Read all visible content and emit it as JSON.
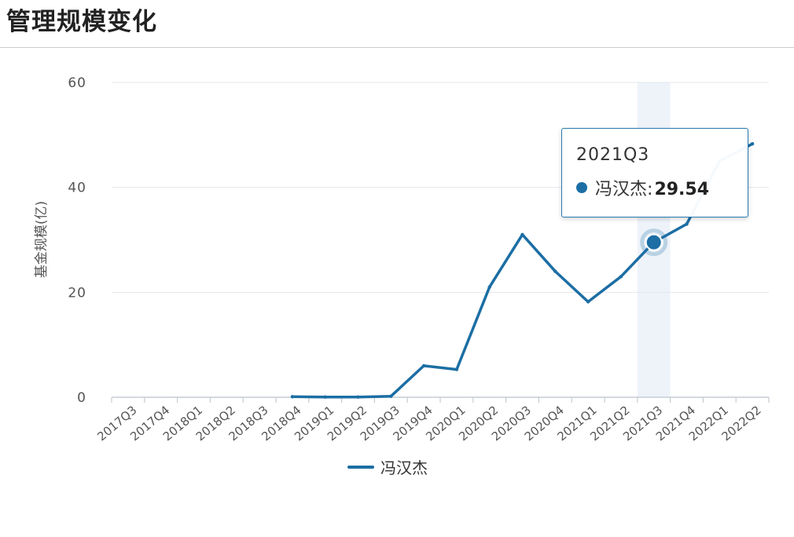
{
  "header": {
    "title": "管理规模变化"
  },
  "colors": {
    "series": "#1c6ea4",
    "highlight_band": "#eef3fa",
    "grid": "#e4e7ec",
    "axis": "#c6ccd6",
    "tick_text": "#555555"
  },
  "tooltip": {
    "title": "2021Q3",
    "series_name": "冯汉杰",
    "separator": ":",
    "value": "29.54"
  },
  "chart_data": {
    "type": "line",
    "title": "",
    "xlabel": "",
    "ylabel": "基金规模(亿)",
    "categories": [
      "2017Q3",
      "2017Q4",
      "2018Q1",
      "2018Q2",
      "2018Q3",
      "2018Q4",
      "2019Q1",
      "2019Q2",
      "2019Q3",
      "2019Q4",
      "2020Q1",
      "2020Q2",
      "2020Q3",
      "2020Q4",
      "2021Q1",
      "2021Q2",
      "2021Q3",
      "2021Q4",
      "2022Q1",
      "2022Q2"
    ],
    "y_ticks": [
      0,
      20,
      40,
      60
    ],
    "ylim": [
      0,
      60
    ],
    "grid": true,
    "legend_position": "bottom-center",
    "highlighted_category": "2021Q3",
    "series": [
      {
        "name": "冯汉杰",
        "values": [
          null,
          null,
          null,
          null,
          null,
          0.1,
          0.05,
          0.05,
          0.2,
          6.0,
          5.3,
          21.0,
          31.0,
          24.0,
          18.2,
          23.0,
          29.54,
          33.0,
          45.0,
          48.3
        ]
      }
    ]
  }
}
